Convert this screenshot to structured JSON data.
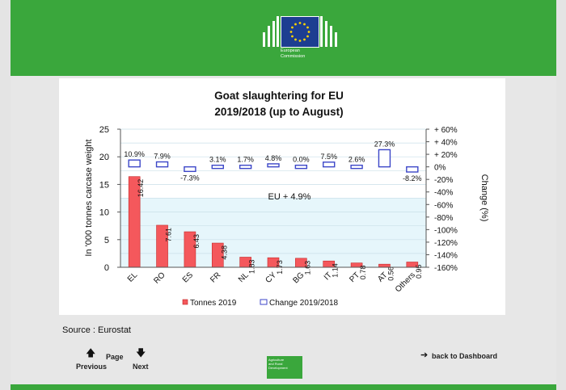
{
  "header": {
    "logo_line1": "European",
    "logo_line2": "Commission"
  },
  "chart_data": {
    "type": "bar",
    "title": "Goat slaughtering for EU",
    "subtitle": "2019/2018 (up to August)",
    "categories": [
      "EL",
      "RO",
      "ES",
      "FR",
      "NL",
      "CY",
      "BG",
      "IT",
      "PT",
      "AT",
      "Others"
    ],
    "series": [
      {
        "name": "Tonnes 2019",
        "axis": "left",
        "color": "#f4585c",
        "values": [
          16.42,
          7.61,
          6.43,
          4.38,
          1.83,
          1.73,
          1.63,
          1.14,
          0.78,
          0.56,
          0.95
        ],
        "labels": [
          "16.42",
          "7.61",
          "6.43",
          "4.38",
          "1.83",
          "1.73",
          "1.63",
          "1.14",
          "0.78",
          "0.56",
          "0.95"
        ]
      },
      {
        "name": "Change 2019/2018",
        "axis": "right",
        "color": "#3c46c8",
        "values": [
          10.9,
          7.9,
          -7.3,
          3.1,
          1.7,
          4.8,
          0.0,
          7.5,
          2.6,
          27.3,
          -8.2
        ],
        "labels": [
          "10.9%",
          "7.9%",
          "-7.3%",
          "3.1%",
          "1.7%",
          "4.8%",
          "0.0%",
          "7.5%",
          "2.6%",
          "27.3%",
          "-8.2%"
        ]
      }
    ],
    "ylabel": "In '000 tonnes carcase weight",
    "y2label": "Change (%)",
    "ylim": [
      0,
      25
    ],
    "y2lim": [
      -160,
      60
    ],
    "yticks": [
      "0",
      "5",
      "10",
      "15",
      "20",
      "25"
    ],
    "y2ticks": [
      "-160%",
      "-140%",
      "-120%",
      "-100%",
      "-80%",
      "-60%",
      "-40%",
      "-20%",
      "0%",
      "+ 20%",
      "+ 40%",
      "+ 60%"
    ],
    "annotation": "EU  + 4.9%",
    "grid": true,
    "legend_position": "bottom"
  },
  "footer": {
    "source": "Source : Eurostat",
    "previous": "Previous",
    "page": "Page",
    "next": "Next",
    "back": "back to Dashboard",
    "agri_line1": "Agriculture",
    "agri_line2": "and Rural",
    "agri_line3": "Development"
  }
}
